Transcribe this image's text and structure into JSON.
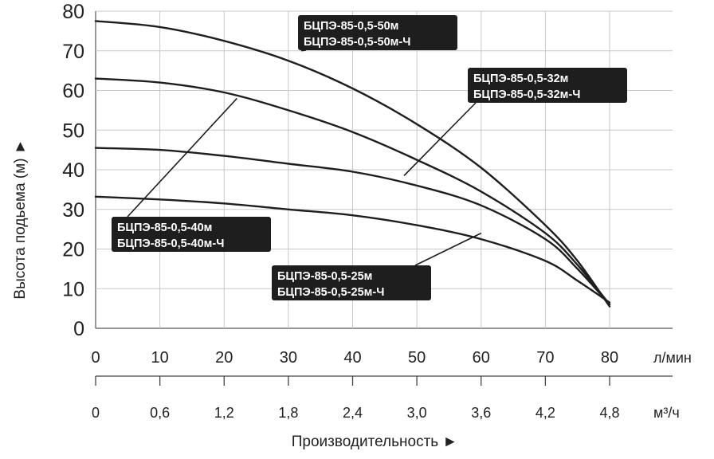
{
  "chart_data": {
    "type": "line",
    "xlabel": "Производительность ►",
    "ylabel": "Высота подьема (м) ►",
    "x_unit": "л/мин",
    "x2_unit": "м³/ч",
    "xlim": [
      0,
      80
    ],
    "ylim": [
      0,
      80
    ],
    "x_ticks": [
      0,
      10,
      20,
      30,
      40,
      50,
      60,
      70,
      80
    ],
    "x2_ticks": [
      "0",
      "0,6",
      "1,2",
      "1,8",
      "2,4",
      "3,0",
      "3,6",
      "4,2",
      "4,8"
    ],
    "y_ticks": [
      0,
      10,
      20,
      30,
      40,
      50,
      60,
      70,
      80
    ],
    "grid": true,
    "line_color": "#1e1e1e",
    "label_bg_color": "#1e1e1e",
    "label_text_color": "#ffffff",
    "series": [
      {
        "name": "БЦПЭ-85-0,5-50м / БЦПЭ-85-0,5-50м-Ч",
        "label_lines": [
          "БЦПЭ-85-0,5-50м",
          "БЦПЭ-85-0,5-50м-Ч"
        ],
        "x": [
          0,
          10,
          20,
          30,
          40,
          50,
          60,
          70,
          75,
          80
        ],
        "y": [
          77.5,
          76,
          72.5,
          67.5,
          60.5,
          51.5,
          40.5,
          26,
          17,
          5.5
        ],
        "label_points_to": [
          32,
          70
        ]
      },
      {
        "name": "БЦПЭ-85-0,5-40м / БЦПЭ-85-0,5-40м-Ч",
        "label_lines": [
          "БЦПЭ-85-0,5-40м",
          "БЦПЭ-85-0,5-40м-Ч"
        ],
        "x": [
          0,
          10,
          20,
          30,
          40,
          50,
          60,
          70,
          75,
          80
        ],
        "y": [
          63,
          62,
          59.5,
          55,
          49.5,
          42.5,
          34.5,
          24,
          16,
          6
        ],
        "label_points_to": [
          22,
          58
        ]
      },
      {
        "name": "БЦПЭ-85-0,5-32м / БЦПЭ-85-0,5-32м-Ч",
        "label_lines": [
          "БЦПЭ-85-0,5-32м",
          "БЦПЭ-85-0,5-32м-Ч"
        ],
        "x": [
          0,
          10,
          20,
          30,
          40,
          50,
          60,
          70,
          75,
          80
        ],
        "y": [
          45.5,
          45,
          43.5,
          41.5,
          39.5,
          36,
          31,
          22.5,
          15,
          6
        ],
        "label_points_to": [
          48,
          38.5
        ]
      },
      {
        "name": "БЦПЭ-85-0,5-25м / БЦПЭ-85-0,5-25м-Ч",
        "label_lines": [
          "БЦПЭ-85-0,5-25м",
          "БЦПЭ-85-0,5-25м-Ч"
        ],
        "x": [
          0,
          10,
          20,
          30,
          40,
          50,
          60,
          70,
          75,
          80
        ],
        "y": [
          33.2,
          32.5,
          31.5,
          30,
          28.5,
          26,
          22.5,
          17,
          12,
          6.5
        ],
        "label_points_to": [
          60,
          24
        ]
      }
    ]
  }
}
